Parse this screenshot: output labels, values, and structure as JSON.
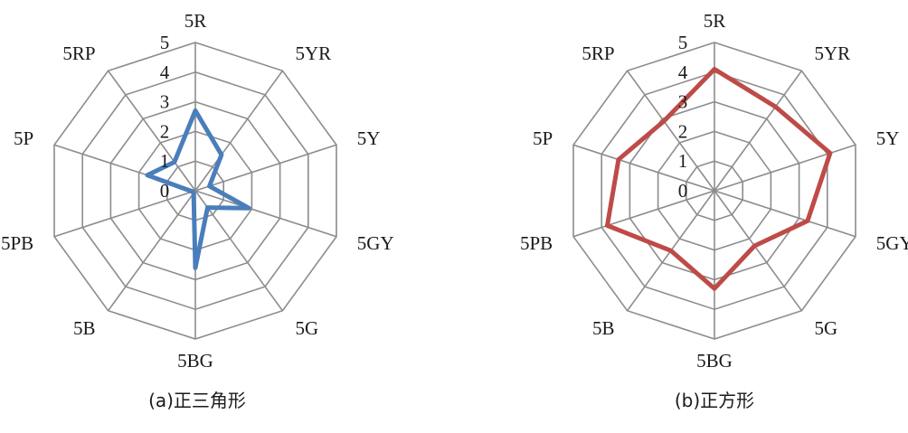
{
  "chart_data": [
    {
      "type": "radar",
      "caption": "(a)正三角形",
      "axes": [
        "5R",
        "5YR",
        "5Y",
        "5GY",
        "5G",
        "5BG",
        "5B",
        "5PB",
        "5P",
        "5RP"
      ],
      "rlim": [
        0,
        5
      ],
      "ticks": [
        "0",
        "1",
        "2",
        "3",
        "4",
        "5"
      ],
      "grid": true,
      "series": [
        {
          "color": "#4a7ebb",
          "values": [
            2.7,
            1.5,
            0.5,
            1.9,
            0.7,
            2.6,
            0.1,
            0.1,
            1.7,
            1.2
          ]
        }
      ]
    },
    {
      "type": "radar",
      "caption": "(b)正方形",
      "axes": [
        "5R",
        "5YR",
        "5Y",
        "5GY",
        "5G",
        "5BG",
        "5B",
        "5PB",
        "5P",
        "5RP"
      ],
      "rlim": [
        0,
        5
      ],
      "ticks": [
        "0",
        "1",
        "2",
        "3",
        "4",
        "5"
      ],
      "grid": true,
      "series": [
        {
          "color": "#be4b48",
          "values": [
            4.1,
            3.5,
            4.1,
            3.3,
            2.3,
            3.3,
            2.5,
            3.8,
            3.4,
            2.9
          ]
        }
      ]
    }
  ]
}
